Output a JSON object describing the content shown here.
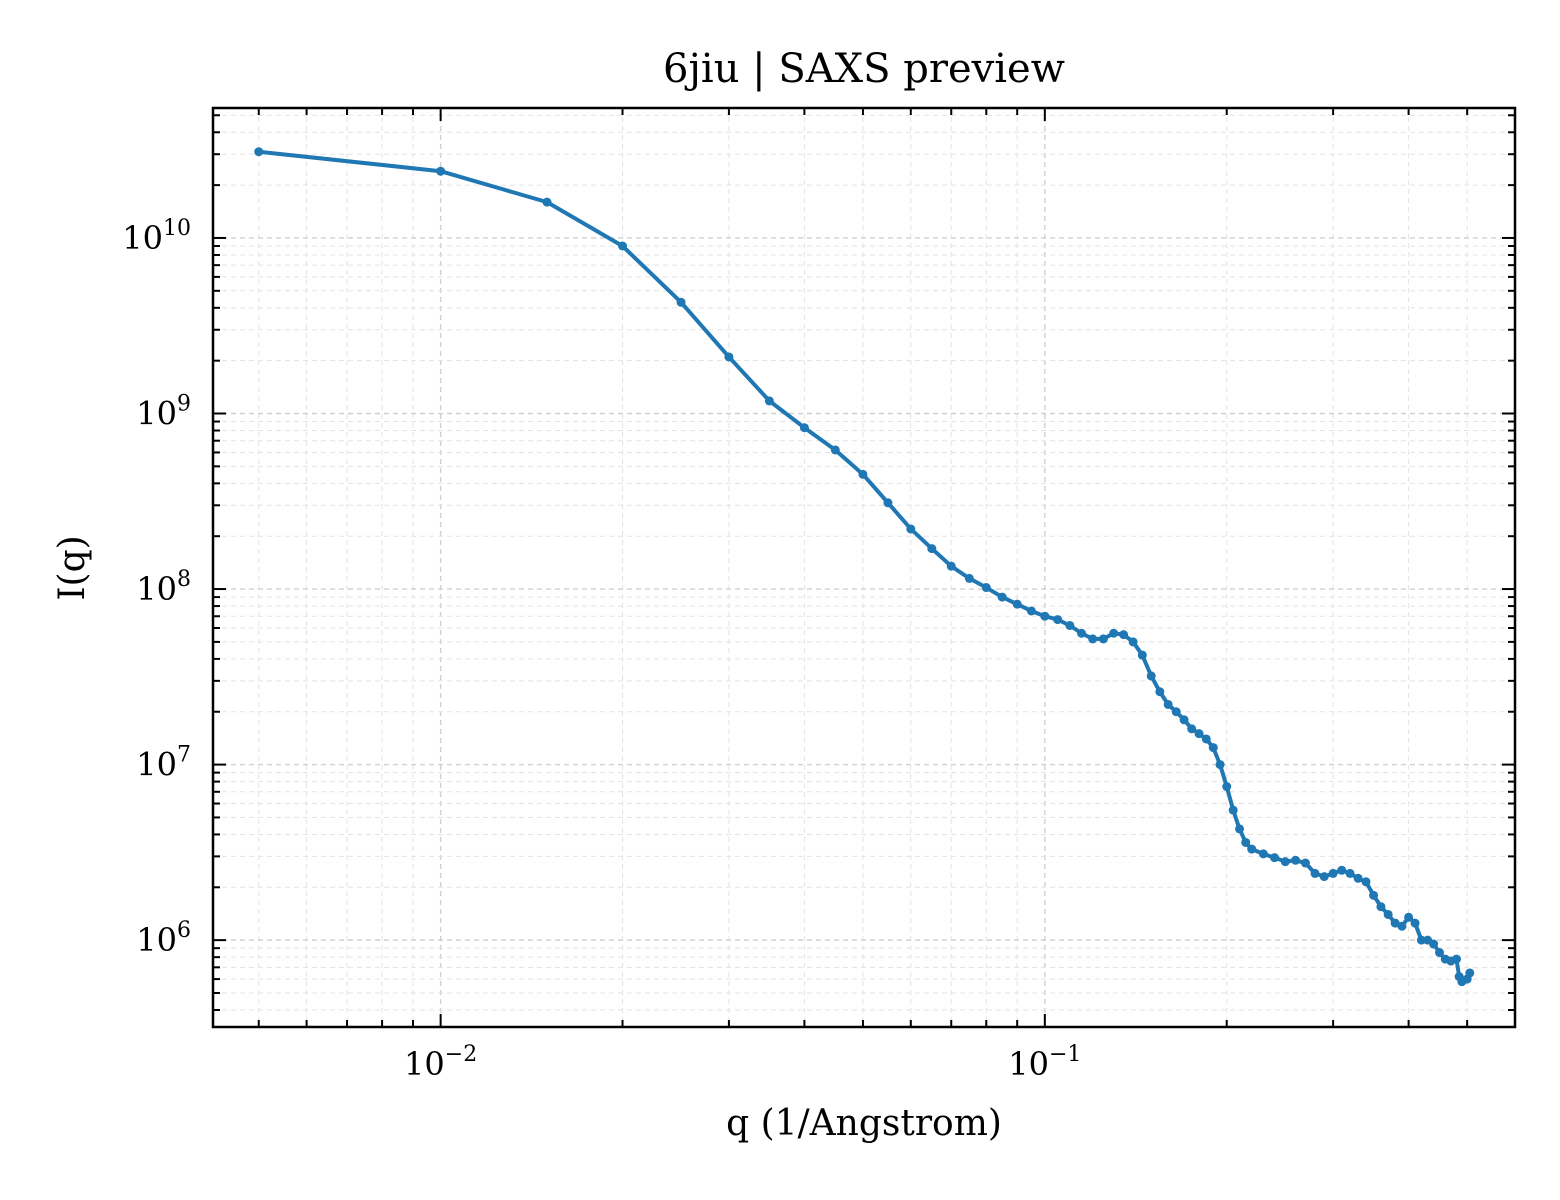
{
  "chart_data": {
    "type": "line",
    "title": "6jiu | SAXS preview",
    "xlabel": "q (1/Angstrom)",
    "ylabel": "I(q)",
    "xscale": "log",
    "yscale": "log",
    "xlim": [
      0.0042,
      0.6
    ],
    "ylim": [
      320000,
      55000000000
    ],
    "grid": true,
    "x_ticks": [
      {
        "value": 0.01,
        "base": "10",
        "exp": "−2"
      },
      {
        "value": 0.1,
        "base": "10",
        "exp": "−1"
      }
    ],
    "y_ticks": [
      {
        "value": 10000000000,
        "base": "10",
        "exp": "10"
      },
      {
        "value": 1000000000,
        "base": "10",
        "exp": "9"
      },
      {
        "value": 100000000,
        "base": "10",
        "exp": "8"
      },
      {
        "value": 10000000,
        "base": "10",
        "exp": "7"
      },
      {
        "value": 1000000,
        "base": "10",
        "exp": "6"
      }
    ],
    "series": [
      {
        "color": "#1f77b4",
        "points": [
          [
            0.005,
            31000000000
          ],
          [
            0.01,
            24000000000
          ],
          [
            0.015,
            16000000000
          ],
          [
            0.02,
            9000000000
          ],
          [
            0.025,
            4300000000
          ],
          [
            0.03,
            2100000000
          ],
          [
            0.035,
            1180000000
          ],
          [
            0.04,
            830000000
          ],
          [
            0.045,
            620000000
          ],
          [
            0.05,
            450000000
          ],
          [
            0.055,
            310000000
          ],
          [
            0.06,
            220000000
          ],
          [
            0.065,
            170000000
          ],
          [
            0.07,
            135000000
          ],
          [
            0.075,
            115000000
          ],
          [
            0.08,
            102000000
          ],
          [
            0.085,
            90000000
          ],
          [
            0.09,
            82000000
          ],
          [
            0.095,
            75000000
          ],
          [
            0.1,
            70000000
          ],
          [
            0.105,
            67000000
          ],
          [
            0.11,
            62000000
          ],
          [
            0.115,
            56000000
          ],
          [
            0.12,
            52000000
          ],
          [
            0.125,
            52000000
          ],
          [
            0.13,
            56000000
          ],
          [
            0.135,
            55000000
          ],
          [
            0.14,
            50000000
          ],
          [
            0.145,
            42000000
          ],
          [
            0.15,
            32000000
          ],
          [
            0.155,
            26000000
          ],
          [
            0.16,
            22000000
          ],
          [
            0.165,
            20000000
          ],
          [
            0.17,
            18000000
          ],
          [
            0.175,
            16000000
          ],
          [
            0.18,
            15000000
          ],
          [
            0.185,
            14000000
          ],
          [
            0.19,
            12500000
          ],
          [
            0.195,
            10000000
          ],
          [
            0.2,
            7500000
          ],
          [
            0.205,
            5500000
          ],
          [
            0.21,
            4300000
          ],
          [
            0.215,
            3600000
          ],
          [
            0.22,
            3300000
          ],
          [
            0.23,
            3100000
          ],
          [
            0.24,
            2950000
          ],
          [
            0.25,
            2800000
          ],
          [
            0.26,
            2850000
          ],
          [
            0.27,
            2750000
          ],
          [
            0.28,
            2400000
          ],
          [
            0.29,
            2300000
          ],
          [
            0.3,
            2400000
          ],
          [
            0.31,
            2500000
          ],
          [
            0.32,
            2400000
          ],
          [
            0.33,
            2250000
          ],
          [
            0.34,
            2150000
          ],
          [
            0.35,
            1800000
          ],
          [
            0.36,
            1550000
          ],
          [
            0.37,
            1400000
          ],
          [
            0.38,
            1250000
          ],
          [
            0.39,
            1200000
          ],
          [
            0.4,
            1350000
          ],
          [
            0.41,
            1250000
          ],
          [
            0.42,
            1000000
          ],
          [
            0.43,
            1000000
          ],
          [
            0.44,
            950000
          ],
          [
            0.45,
            850000
          ],
          [
            0.46,
            780000
          ],
          [
            0.47,
            760000
          ],
          [
            0.48,
            780000
          ],
          [
            0.485,
            620000
          ],
          [
            0.49,
            580000
          ],
          [
            0.5,
            600000
          ],
          [
            0.505,
            650000
          ]
        ]
      }
    ]
  }
}
